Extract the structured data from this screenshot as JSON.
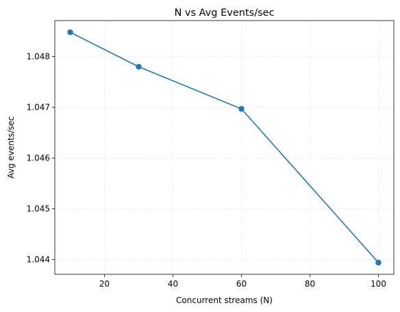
{
  "chart_data": {
    "type": "line",
    "title": "N vs Avg Events/sec",
    "xlabel": "Concurrent streams (N)",
    "ylabel": "Avg events/sec",
    "x": [
      10,
      30,
      60,
      100
    ],
    "series": [
      {
        "values": [
          1.04848,
          1.0478,
          1.04697,
          1.04394
        ],
        "color": "#1f77b4",
        "marker": "circle"
      }
    ],
    "xlim": [
      5.5,
      104.5
    ],
    "ylim": [
      1.04371,
      1.04871
    ],
    "xticks": [
      20,
      40,
      60,
      80,
      100
    ],
    "yticks": [
      1.044,
      1.045,
      1.046,
      1.047,
      1.048
    ],
    "xtick_labels": [
      "20",
      "40",
      "60",
      "80",
      "100"
    ],
    "ytick_labels": [
      "1.044",
      "1.045",
      "1.046",
      "1.047",
      "1.048"
    ],
    "grid": true,
    "legend": "none"
  }
}
